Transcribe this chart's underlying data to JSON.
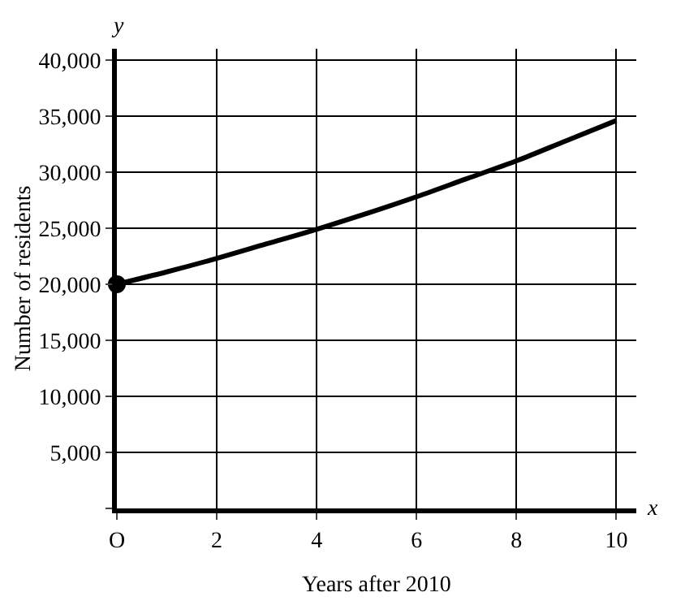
{
  "chart_data": {
    "type": "line",
    "xlabel": "Years after 2010",
    "ylabel": "Number of residents",
    "annotations": [
      "x",
      "y"
    ],
    "series": [
      {
        "color": "#000000",
        "marker": "none",
        "x": [
          0,
          1,
          2,
          3,
          4,
          5,
          6,
          7,
          8,
          9,
          10
        ],
        "values": [
          20000,
          21100,
          22300,
          23600,
          24900,
          26300,
          27800,
          29400,
          31000,
          32800,
          34600
        ]
      },
      {
        "type": "scatter",
        "color": "#000000",
        "marker": "circle",
        "x": [
          0
        ],
        "values": [
          20000
        ]
      }
    ],
    "xlim": [
      0,
      10.4
    ],
    "ylim": [
      0,
      41000
    ],
    "xticks": [
      {
        "value": 0,
        "label": "O"
      },
      2,
      4,
      6,
      8,
      10
    ],
    "yticks": [
      {
        "value": 0,
        "label": null
      },
      {
        "value": 5000,
        "label": "5,000"
      },
      {
        "value": 10000,
        "label": "10,000"
      },
      {
        "value": 15000,
        "label": "15,000"
      },
      {
        "value": 20000,
        "label": "20,000"
      },
      {
        "value": 25000,
        "label": "25,000"
      },
      {
        "value": 30000,
        "label": "30,000"
      },
      {
        "value": 35000,
        "label": "35,000"
      },
      {
        "value": 40000,
        "label": "40,000"
      }
    ],
    "grid": true
  }
}
